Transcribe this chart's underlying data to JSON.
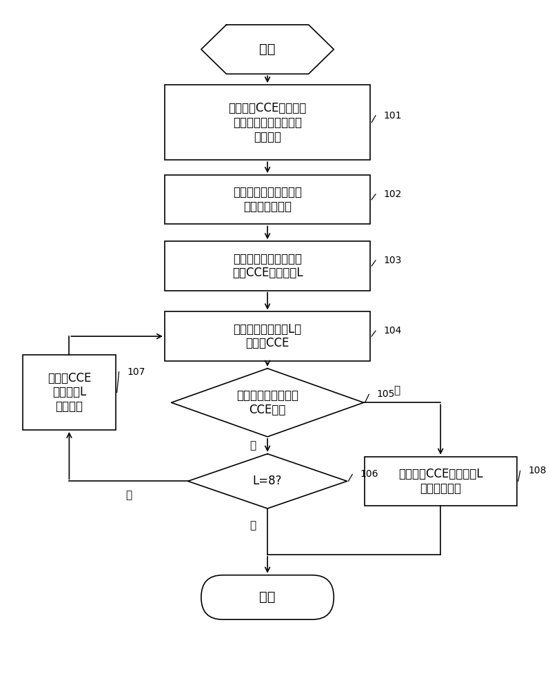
{
  "bg_color": "#ffffff",
  "line_color": "#000000",
  "box_fill": "#ffffff",
  "text_color": "#000000",
  "start_text": "开始",
  "end_text": "结束",
  "n101_text": "设置各个CCE聚合等级\n与信干噪比门限值的对\n应关系表",
  "n102_text": "获得当前用户设备的下\n行信道质量参数",
  "n103_text": "根据下行信道质量参数\n确定CCE聚合等级L",
  "n104_text": "使用当前聚合等级L查\n找可用CCE",
  "n105_text": "判断是否找到可用的\nCCE位置",
  "n106_text": "L=8?",
  "n107_text": "将当前CCE\n聚合等级L\n升高一级",
  "n108_text": "使用当前CCE聚合等级L\n进行后续操作",
  "label_101": "101",
  "label_102": "102",
  "label_103": "103",
  "label_104": "104",
  "label_105": "105",
  "label_106": "106",
  "label_107": "107",
  "label_108": "108",
  "yes_text": "是",
  "no_text": "否",
  "font_size_main": 12,
  "font_size_label": 10,
  "font_size_title": 14,
  "font_size_yn": 11
}
